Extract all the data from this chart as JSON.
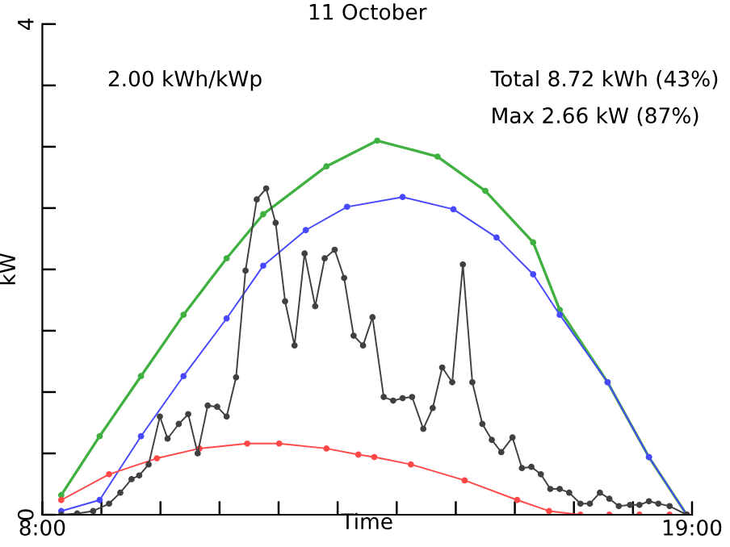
{
  "chart_data": {
    "type": "line",
    "title": "11 October",
    "xlabel": "Time",
    "ylabel": "kW",
    "annotations": [
      "2.00 kWh/kWp",
      "Total 8.72 kWh (43%)",
      "Max 2.66 kW (87%)"
    ],
    "xlim": [
      8,
      19
    ],
    "xticks": [
      {
        "value": 8,
        "label": "8:00"
      },
      {
        "value": 9,
        "label": null
      },
      {
        "value": 10,
        "label": null
      },
      {
        "value": 11,
        "label": null
      },
      {
        "value": 12,
        "label": null
      },
      {
        "value": 13,
        "label": null
      },
      {
        "value": 14,
        "label": null
      },
      {
        "value": 15,
        "label": null
      },
      {
        "value": 16,
        "label": null
      },
      {
        "value": 17,
        "label": null
      },
      {
        "value": 18,
        "label": null
      },
      {
        "value": 19,
        "label": "19:00"
      }
    ],
    "ylim": [
      0,
      4
    ],
    "yticks": [
      0,
      {
        "value": 0.5,
        "label": null
      },
      {
        "value": 1,
        "label": null
      },
      {
        "value": 1.5,
        "label": null
      },
      {
        "value": 2,
        "label": null
      },
      {
        "value": 2.5,
        "label": null
      },
      {
        "value": 3,
        "label": null
      },
      {
        "value": 3.5,
        "label": null
      },
      4
    ],
    "grid": false,
    "legend": false,
    "marker": "circle",
    "line_style": "solid",
    "series": [
      {
        "color": "#40b040",
        "x": [
          8.32,
          8.97,
          9.67,
          10.39,
          11.12,
          11.74,
          12.81,
          13.67,
          14.69,
          15.5,
          16.31,
          16.76,
          17.57,
          18.27,
          18.91
        ],
        "values": [
          0.16,
          0.64,
          1.13,
          1.63,
          2.09,
          2.45,
          2.84,
          3.05,
          2.92,
          2.64,
          2.22,
          1.67,
          1.08,
          0.47,
          0
        ]
      },
      {
        "color": "#4848ff",
        "x": [
          8.32,
          8.97,
          9.67,
          10.39,
          11.12,
          11.74,
          12.46,
          13.16,
          14.1,
          14.96,
          15.69,
          16.31,
          16.76,
          17.57,
          18.27,
          18.91
        ],
        "values": [
          0.03,
          0.12,
          0.64,
          1.13,
          1.6,
          2.03,
          2.32,
          2.51,
          2.59,
          2.49,
          2.26,
          1.96,
          1.63,
          1.08,
          0.47,
          0
        ]
      },
      {
        "color": "#ff4848",
        "x": [
          8.32,
          9.13,
          9.94,
          10.66,
          11.47,
          12.01,
          12.81,
          13.35,
          13.62,
          14.24,
          15.15,
          16.04,
          16.58,
          17.11,
          17.6,
          18.11,
          18.62,
          18.91
        ],
        "values": [
          0.12,
          0.33,
          0.46,
          0.54,
          0.58,
          0.58,
          0.54,
          0.49,
          0.47,
          0.41,
          0.28,
          0.12,
          0.03,
          0,
          0,
          0,
          0,
          0
        ]
      },
      {
        "color": "#404040",
        "x": [
          8.32,
          8.59,
          8.86,
          9.13,
          9.32,
          9.51,
          9.64,
          9.8,
          9.99,
          10.12,
          10.31,
          10.47,
          10.63,
          10.8,
          10.96,
          11.12,
          11.28,
          11.44,
          11.63,
          11.79,
          11.95,
          12.11,
          12.27,
          12.44,
          12.62,
          12.78,
          12.95,
          13.11,
          13.27,
          13.43,
          13.59,
          13.78,
          13.94,
          14.1,
          14.26,
          14.45,
          14.61,
          14.77,
          14.94,
          15.12,
          15.28,
          15.45,
          15.61,
          15.77,
          15.96,
          16.12,
          16.28,
          16.44,
          16.6,
          16.76,
          16.92,
          17.11,
          17.27,
          17.44,
          17.6,
          17.76,
          17.95,
          18.11,
          18.27,
          18.43,
          18.62,
          18.91
        ],
        "values": [
          0,
          0.01,
          0.03,
          0.09,
          0.18,
          0.29,
          0.32,
          0.41,
          0.8,
          0.62,
          0.74,
          0.82,
          0.5,
          0.89,
          0.88,
          0.8,
          1.12,
          1.99,
          2.57,
          2.66,
          2.38,
          1.74,
          1.38,
          2.13,
          1.7,
          2.09,
          2.16,
          1.93,
          1.46,
          1.38,
          1.61,
          0.96,
          0.93,
          0.95,
          0.96,
          0.7,
          0.87,
          1.2,
          1.08,
          2.04,
          1.08,
          0.74,
          0.61,
          0.51,
          0.63,
          0.38,
          0.39,
          0.33,
          0.21,
          0.21,
          0.18,
          0.09,
          0.09,
          0.18,
          0.13,
          0.07,
          0.08,
          0.08,
          0.11,
          0.09,
          0.07,
          0
        ]
      }
    ]
  }
}
